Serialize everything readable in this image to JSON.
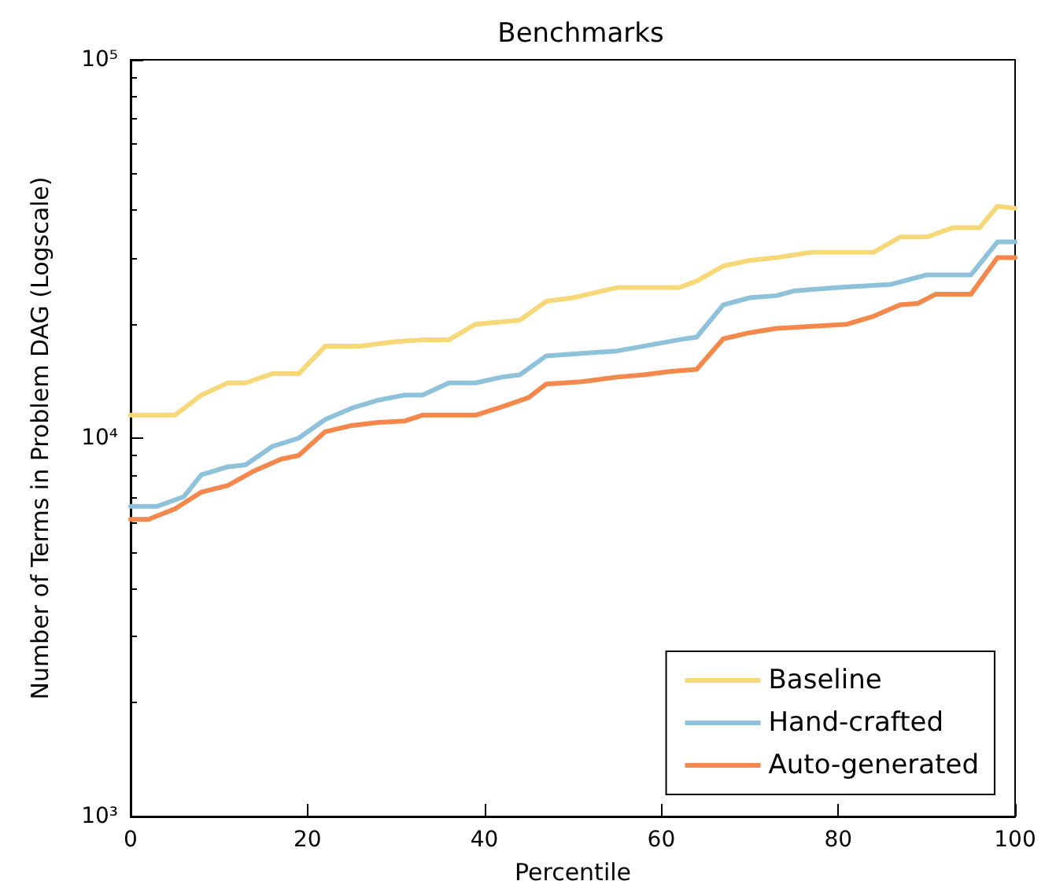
{
  "chart_data": {
    "type": "line",
    "title": "Benchmarks",
    "xlabel": "Percentile",
    "ylabel": "Number of Terms in Problem DAG (Logscale)",
    "xlim": [
      0,
      100
    ],
    "xticks": [
      0,
      20,
      40,
      60,
      80,
      100
    ],
    "ylim": [
      1000,
      100000
    ],
    "yticks": [
      {
        "value": 1000,
        "label": "10³"
      },
      {
        "value": 10000,
        "label": "10⁴"
      },
      {
        "value": 100000,
        "label": "10⁵"
      }
    ],
    "log": "y",
    "grid": false,
    "legend": "bottom right",
    "marker": "none",
    "line_style": "solid",
    "series": [
      {
        "name": "Baseline",
        "color": "#f7d878",
        "x": [
          0,
          5,
          8,
          11,
          13,
          16,
          19,
          22,
          26,
          30,
          33,
          36,
          39,
          44,
          47,
          50,
          55,
          62,
          64,
          67,
          70,
          73,
          77,
          84,
          87,
          90,
          93,
          96,
          98,
          100
        ],
        "values": [
          11500,
          11500,
          13000,
          14000,
          14000,
          14800,
          14800,
          17500,
          17500,
          18000,
          18200,
          18200,
          20000,
          20500,
          23000,
          23500,
          25000,
          25000,
          26000,
          28500,
          29500,
          30000,
          31000,
          31000,
          34000,
          34000,
          36000,
          36000,
          41000,
          40500
        ]
      },
      {
        "name": "Hand-crafted",
        "color": "#8ec1da",
        "x": [
          0,
          3,
          6,
          8,
          11,
          13,
          16,
          19,
          22,
          25,
          28,
          31,
          33,
          36,
          39,
          42,
          44,
          47,
          55,
          58,
          62,
          64,
          67,
          70,
          73,
          75,
          80,
          86,
          90,
          95,
          98,
          100
        ],
        "values": [
          6600,
          6600,
          7000,
          8000,
          8400,
          8500,
          9500,
          10000,
          11200,
          12000,
          12600,
          13000,
          13000,
          14000,
          14000,
          14500,
          14700,
          16500,
          17000,
          17500,
          18200,
          18500,
          22500,
          23500,
          23800,
          24500,
          25000,
          25500,
          27000,
          27000,
          33000,
          33000
        ]
      },
      {
        "name": "Auto-generated",
        "color": "#f4874b",
        "x": [
          0,
          2,
          5,
          8,
          11,
          14,
          17,
          19,
          22,
          25,
          28,
          31,
          33,
          39,
          42,
          45,
          47,
          51,
          55,
          58,
          61,
          64,
          67,
          70,
          73,
          78,
          81,
          84,
          87,
          89,
          91,
          95,
          98,
          100
        ],
        "values": [
          6100,
          6100,
          6500,
          7200,
          7500,
          8200,
          8800,
          9000,
          10400,
          10800,
          11000,
          11100,
          11500,
          11500,
          12100,
          12800,
          13900,
          14100,
          14500,
          14700,
          15000,
          15200,
          18300,
          19000,
          19500,
          19800,
          20000,
          21000,
          22500,
          22700,
          24000,
          24000,
          30000,
          30000
        ]
      }
    ]
  }
}
